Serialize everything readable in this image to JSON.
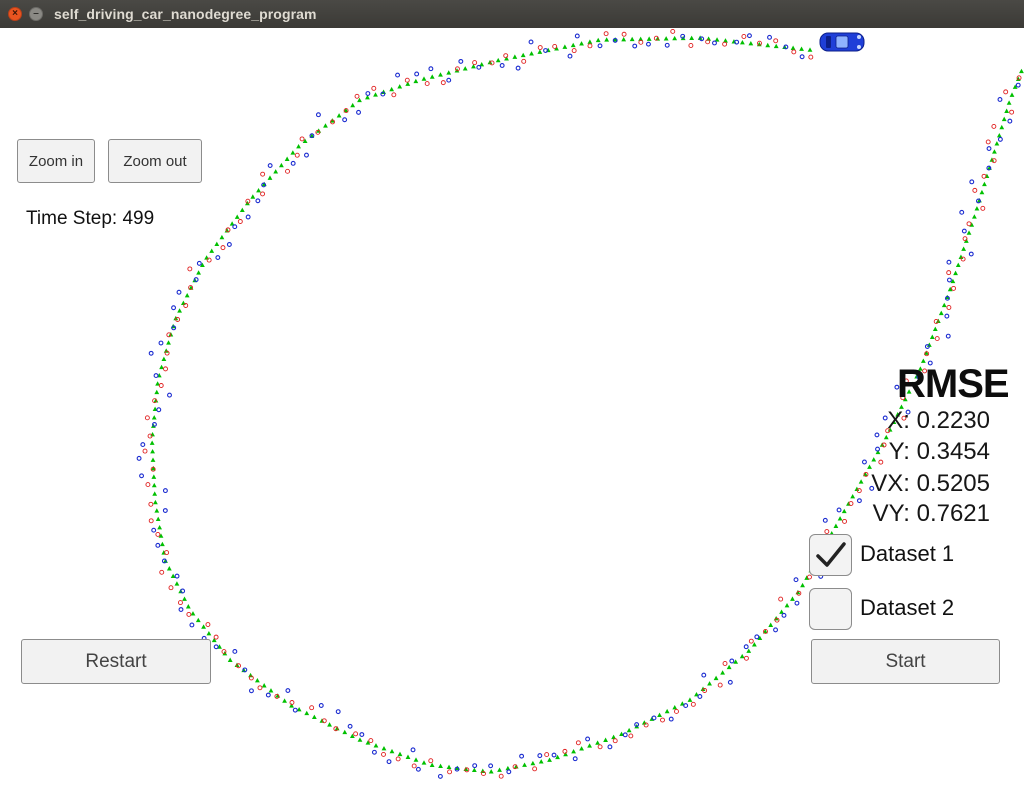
{
  "window": {
    "title": "self_driving_car_nanodegree_program",
    "close_glyph": "×",
    "min_glyph": "–"
  },
  "controls": {
    "zoom_in_label": "Zoom in",
    "zoom_out_label": "Zoom out",
    "restart_label": "Restart",
    "start_label": "Start"
  },
  "status": {
    "time_step": "Time Step: 499"
  },
  "rmse": {
    "title": "RMSE",
    "x": "X: 0.2230",
    "y": "Y: 0.3454",
    "vx": "VX: 0.5205",
    "vy": "VY: 0.7621"
  },
  "datasets": [
    {
      "label": "Dataset 1",
      "checked": true
    },
    {
      "label": "Dataset 2",
      "checked": false
    }
  ],
  "colors": {
    "estimate": "#00c000",
    "lidar": "#e02020",
    "radar": "#1a2bd0",
    "car": "#1f3fd8"
  },
  "icons": {
    "car": "car-icon",
    "check": "checkmark-icon"
  }
}
